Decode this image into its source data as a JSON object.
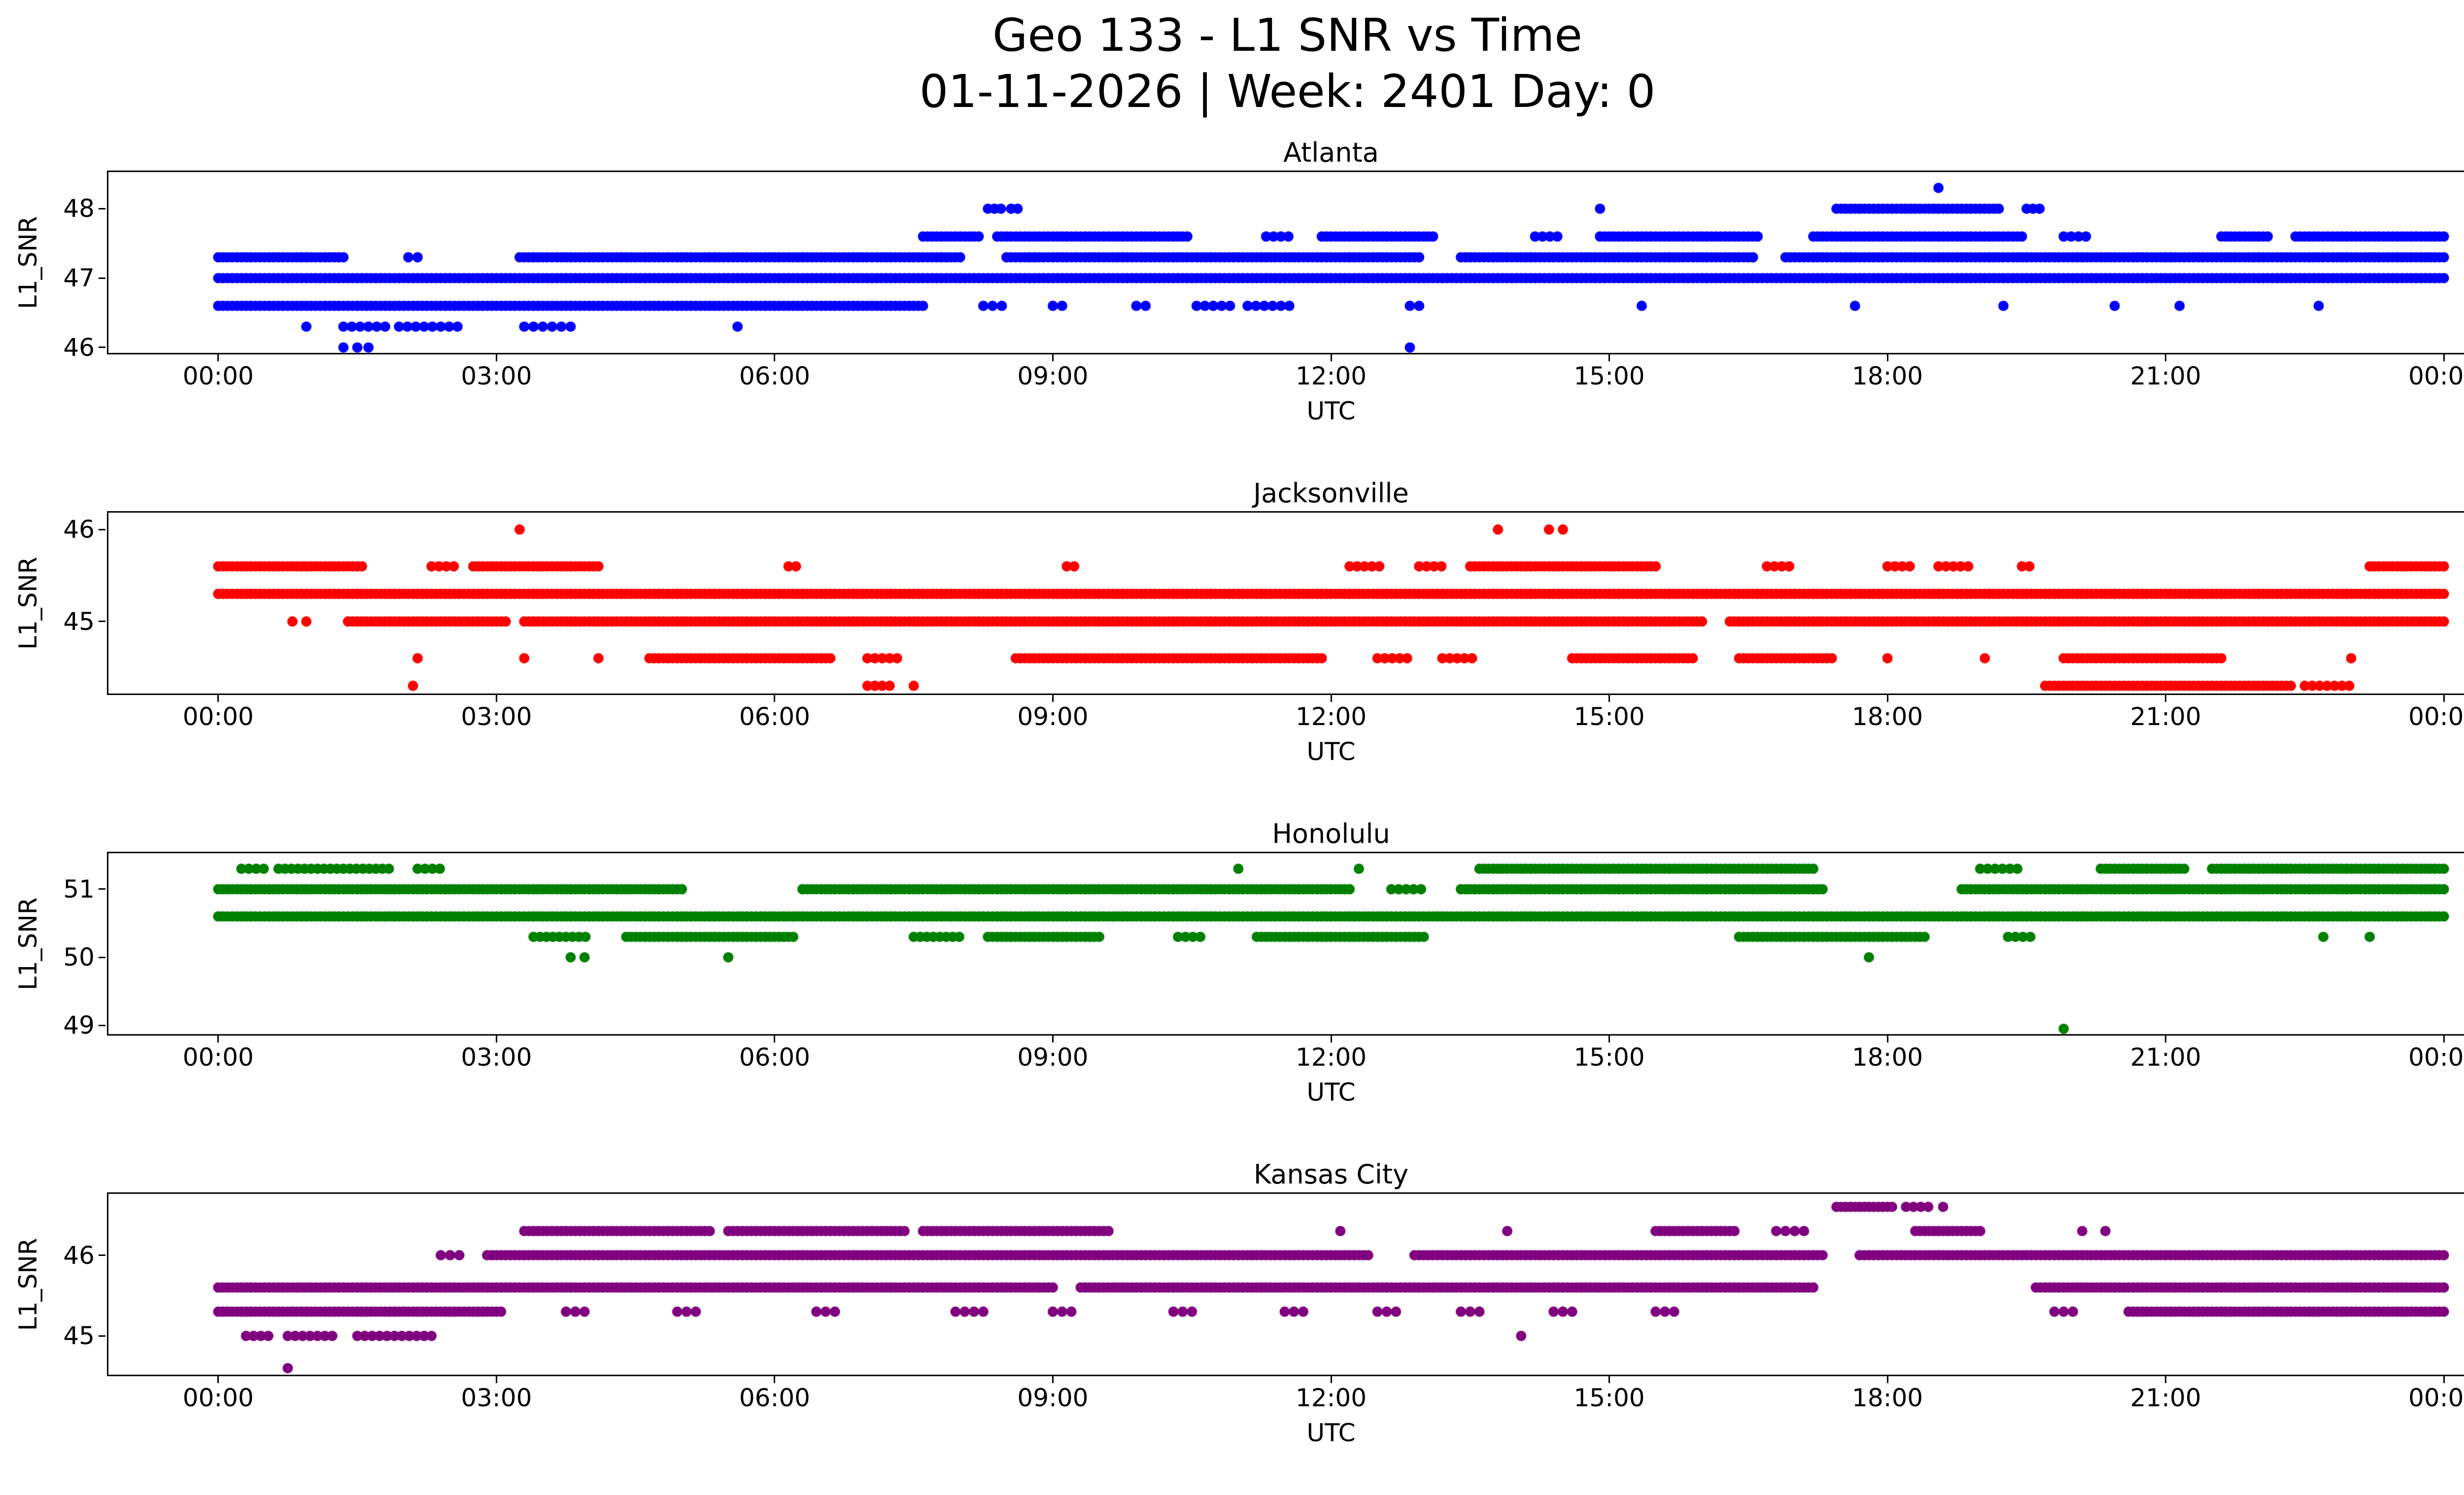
{
  "figure": {
    "title": "Geo 133 - L1 SNR vs Time",
    "subtitle": "01-11-2026 | Week: 2401 Day: 0",
    "background": "#ffffff",
    "text_color": "#000000"
  },
  "chart_data": [
    {
      "type": "scatter",
      "title": "Atlanta",
      "color": "#0000ff",
      "marker": "circle-icon",
      "xlabel": "UTC",
      "ylabel": "L1_SNR",
      "xlim": [
        -1.2,
        25.2
      ],
      "ylim": [
        45.9,
        48.55
      ],
      "xticks": [
        0,
        3,
        6,
        9,
        12,
        15,
        18,
        21,
        24
      ],
      "xtick_labels": [
        "00:00",
        "03:00",
        "06:00",
        "09:00",
        "12:00",
        "15:00",
        "18:00",
        "21:00",
        "00:00"
      ],
      "yticks": [
        46,
        47,
        48
      ],
      "runs": [
        [
          47.0,
          0,
          24
        ],
        [
          46.6,
          0,
          7.6
        ],
        [
          46.6,
          8.25,
          8.45,
          0.1
        ],
        [
          46.6,
          9.0,
          9.15,
          0.1
        ],
        [
          46.6,
          9.9,
          10.0,
          0.1
        ],
        [
          46.6,
          10.55,
          10.95,
          0.09
        ],
        [
          46.6,
          11.1,
          11.55,
          0.09
        ],
        [
          46.6,
          12.85,
          13.0,
          0.1
        ],
        [
          47.3,
          0,
          1.35
        ],
        [
          47.3,
          2.05,
          2.2,
          0.1
        ],
        [
          47.3,
          3.25,
          8.0
        ],
        [
          47.3,
          8.5,
          12.95
        ],
        [
          47.3,
          13.4,
          16.55
        ],
        [
          47.3,
          16.9,
          24
        ],
        [
          46.3,
          1.35,
          1.8,
          0.09
        ],
        [
          46.3,
          1.95,
          2.6,
          0.09
        ],
        [
          46.3,
          3.3,
          3.5,
          0.1
        ],
        [
          46.3,
          3.6,
          3.8,
          0.1
        ],
        [
          47.6,
          7.6,
          8.2
        ],
        [
          47.6,
          8.4,
          10.45
        ],
        [
          47.6,
          11.3,
          11.55,
          0.08
        ],
        [
          47.6,
          11.9,
          13.1
        ],
        [
          47.6,
          14.2,
          14.5,
          0.08
        ],
        [
          47.6,
          14.9,
          16.6
        ],
        [
          47.6,
          17.2,
          19.45
        ],
        [
          47.6,
          19.9,
          20.15,
          0.08
        ],
        [
          47.6,
          21.6,
          22.1
        ],
        [
          47.6,
          22.4,
          24
        ],
        [
          48.0,
          8.3,
          8.45,
          0.07
        ],
        [
          48.0,
          8.55,
          8.68,
          0.07
        ],
        [
          48.0,
          17.45,
          19.2
        ],
        [
          48.0,
          19.5,
          19.65,
          0.07
        ]
      ],
      "points": [
        [
          46.0,
          1.35
        ],
        [
          46.0,
          1.5
        ],
        [
          46.0,
          1.62
        ],
        [
          46.0,
          12.85
        ],
        [
          46.3,
          0.95
        ],
        [
          46.3,
          5.6
        ],
        [
          46.6,
          15.35
        ],
        [
          46.6,
          17.65
        ],
        [
          46.6,
          19.25
        ],
        [
          46.6,
          20.45
        ],
        [
          46.6,
          21.15
        ],
        [
          46.6,
          22.65
        ],
        [
          48.0,
          14.9
        ],
        [
          48.3,
          18.55
        ]
      ]
    },
    {
      "type": "scatter",
      "title": "Jacksonville",
      "color": "#ff0000",
      "marker": "circle-icon",
      "xlabel": "UTC",
      "ylabel": "L1_SNR",
      "xlim": [
        -1.2,
        25.2
      ],
      "ylim": [
        44.2,
        46.2
      ],
      "xticks": [
        0,
        3,
        6,
        9,
        12,
        15,
        18,
        21,
        24
      ],
      "xtick_labels": [
        "00:00",
        "03:00",
        "06:00",
        "09:00",
        "12:00",
        "15:00",
        "18:00",
        "21:00",
        "00:00"
      ],
      "yticks": [
        45,
        46
      ],
      "runs": [
        [
          45.3,
          0,
          24
        ],
        [
          45.6,
          0,
          1.55
        ],
        [
          45.6,
          2.3,
          2.55,
          0.08
        ],
        [
          45.6,
          2.75,
          4.1
        ],
        [
          45.6,
          6.15,
          6.3,
          0.08
        ],
        [
          45.6,
          9.15,
          9.3,
          0.08
        ],
        [
          45.6,
          12.2,
          12.55,
          0.08
        ],
        [
          45.6,
          12.95,
          13.2,
          0.08
        ],
        [
          45.6,
          13.5,
          15.5
        ],
        [
          45.6,
          16.7,
          16.95,
          0.08
        ],
        [
          45.6,
          18.0,
          18.25,
          0.08
        ],
        [
          45.6,
          18.55,
          18.9,
          0.08
        ],
        [
          45.6,
          19.45,
          19.6,
          0.08
        ],
        [
          45.6,
          23.2,
          24
        ],
        [
          45.0,
          1.4,
          3.1
        ],
        [
          45.0,
          3.3,
          16.0
        ],
        [
          45.0,
          16.3,
          24
        ],
        [
          44.6,
          4.65,
          6.6
        ],
        [
          44.6,
          7.0,
          7.35,
          0.08
        ],
        [
          44.6,
          8.6,
          11.9
        ],
        [
          44.6,
          12.5,
          12.85,
          0.08
        ],
        [
          44.6,
          13.2,
          13.55,
          0.08
        ],
        [
          44.6,
          14.6,
          15.9
        ],
        [
          44.6,
          16.4,
          17.4
        ],
        [
          44.6,
          19.9,
          21.6
        ],
        [
          44.3,
          7.0,
          7.25,
          0.08
        ],
        [
          44.3,
          19.7,
          22.35
        ],
        [
          44.3,
          22.5,
          23.0,
          0.08
        ]
      ],
      "points": [
        [
          46.0,
          3.25
        ],
        [
          46.0,
          13.8
        ],
        [
          46.0,
          14.35
        ],
        [
          46.0,
          14.5
        ],
        [
          45.0,
          0.8
        ],
        [
          45.0,
          0.95
        ],
        [
          44.6,
          2.15
        ],
        [
          44.6,
          3.3
        ],
        [
          44.6,
          4.1
        ],
        [
          44.6,
          18.0
        ],
        [
          44.6,
          19.05
        ],
        [
          44.6,
          23.0
        ],
        [
          44.3,
          2.1
        ],
        [
          44.3,
          7.5
        ]
      ]
    },
    {
      "type": "scatter",
      "title": "Honolulu",
      "color": "#008000",
      "marker": "circle-icon",
      "xlabel": "UTC",
      "ylabel": "L1_SNR",
      "xlim": [
        -1.2,
        25.2
      ],
      "ylim": [
        48.85,
        51.55
      ],
      "xticks": [
        0,
        3,
        6,
        9,
        12,
        15,
        18,
        21,
        24
      ],
      "xtick_labels": [
        "00:00",
        "03:00",
        "06:00",
        "09:00",
        "12:00",
        "15:00",
        "18:00",
        "21:00",
        "00:00"
      ],
      "yticks": [
        49,
        50,
        51
      ],
      "runs": [
        [
          50.6,
          0,
          24
        ],
        [
          51.0,
          0,
          5.0
        ],
        [
          51.0,
          6.3,
          12.2
        ],
        [
          51.0,
          12.65,
          13.0,
          0.08
        ],
        [
          51.0,
          13.4,
          17.3
        ],
        [
          51.0,
          18.8,
          24
        ],
        [
          51.3,
          0.25,
          0.5,
          0.08
        ],
        [
          51.3,
          0.65,
          1.9,
          0.07
        ],
        [
          51.3,
          2.15,
          2.45,
          0.08
        ],
        [
          51.3,
          13.6,
          17.2
        ],
        [
          51.3,
          19.0,
          19.45,
          0.08
        ],
        [
          51.3,
          20.3,
          21.2
        ],
        [
          51.3,
          21.5,
          24
        ],
        [
          50.3,
          3.4,
          4.0,
          0.07
        ],
        [
          50.3,
          4.4,
          6.2
        ],
        [
          50.3,
          7.5,
          8.05,
          0.07
        ],
        [
          50.3,
          8.3,
          9.5
        ],
        [
          50.3,
          10.35,
          10.6,
          0.08
        ],
        [
          50.3,
          11.2,
          13.0
        ],
        [
          50.3,
          16.4,
          18.4
        ],
        [
          50.3,
          19.3,
          19.55,
          0.08
        ]
      ],
      "points": [
        [
          51.3,
          11.0
        ],
        [
          51.3,
          12.3
        ],
        [
          50.3,
          22.7
        ],
        [
          50.3,
          23.2
        ],
        [
          50.0,
          3.8
        ],
        [
          50.0,
          3.95
        ],
        [
          50.0,
          5.5
        ],
        [
          50.0,
          17.8
        ],
        [
          48.95,
          19.9
        ]
      ]
    },
    {
      "type": "scatter",
      "title": "Kansas City",
      "color": "#800080",
      "marker": "circle-icon",
      "xlabel": "UTC",
      "ylabel": "L1_SNR",
      "xlim": [
        -1.2,
        25.2
      ],
      "ylim": [
        44.5,
        46.78
      ],
      "xticks": [
        0,
        3,
        6,
        9,
        12,
        15,
        18,
        21,
        24
      ],
      "xtick_labels": [
        "00:00",
        "03:00",
        "06:00",
        "09:00",
        "12:00",
        "15:00",
        "18:00",
        "21:00",
        "00:00"
      ],
      "yticks": [
        45,
        46
      ],
      "runs": [
        [
          45.6,
          0,
          9.0
        ],
        [
          45.6,
          9.3,
          17.2
        ],
        [
          45.6,
          19.6,
          24
        ],
        [
          45.3,
          0,
          3.05
        ],
        [
          45.3,
          3.75,
          3.95,
          0.1
        ],
        [
          45.3,
          4.95,
          5.15,
          0.1
        ],
        [
          45.3,
          6.45,
          6.65,
          0.1
        ],
        [
          45.3,
          7.95,
          8.3,
          0.1
        ],
        [
          45.3,
          9.0,
          9.25,
          0.1
        ],
        [
          45.3,
          10.3,
          10.55,
          0.1
        ],
        [
          45.3,
          11.5,
          11.75,
          0.1
        ],
        [
          45.3,
          12.5,
          12.75,
          0.1
        ],
        [
          45.3,
          13.4,
          13.65,
          0.1
        ],
        [
          45.3,
          14.4,
          14.65,
          0.1
        ],
        [
          45.3,
          15.5,
          15.75,
          0.1
        ],
        [
          45.3,
          19.8,
          20.05,
          0.1
        ],
        [
          45.3,
          20.6,
          24
        ],
        [
          45.0,
          0.3,
          0.6,
          0.08
        ],
        [
          45.0,
          0.75,
          1.3,
          0.08
        ],
        [
          45.0,
          1.5,
          2.3,
          0.08
        ],
        [
          46.0,
          2.4,
          2.65,
          0.1
        ],
        [
          46.0,
          2.9,
          12.4
        ],
        [
          46.0,
          12.9,
          17.3
        ],
        [
          46.0,
          17.7,
          24
        ],
        [
          46.3,
          3.3,
          5.3
        ],
        [
          46.3,
          5.5,
          7.4
        ],
        [
          46.3,
          7.6,
          9.6
        ],
        [
          46.3,
          15.5,
          16.35
        ],
        [
          46.3,
          16.8,
          17.1,
          0.1
        ],
        [
          46.3,
          18.3,
          19.0
        ],
        [
          46.6,
          17.45,
          18.05
        ],
        [
          46.6,
          18.2,
          18.45,
          0.08
        ]
      ],
      "points": [
        [
          45.0,
          14.05
        ],
        [
          44.6,
          0.75
        ],
        [
          46.3,
          12.1
        ],
        [
          46.3,
          13.9
        ],
        [
          46.3,
          20.1
        ],
        [
          46.3,
          20.35
        ],
        [
          46.6,
          18.6
        ]
      ]
    }
  ]
}
